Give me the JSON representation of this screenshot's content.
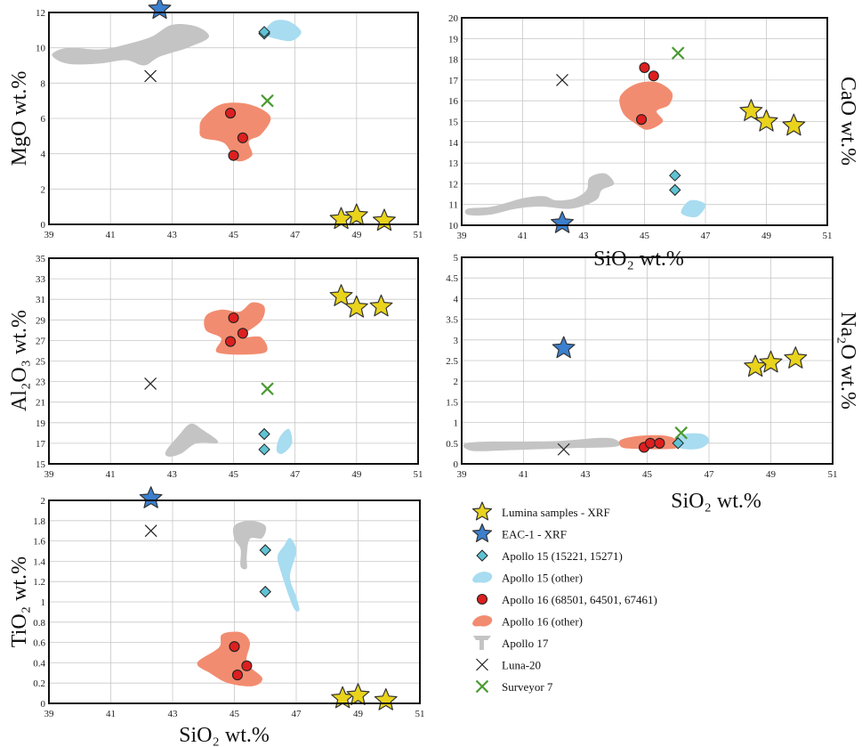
{
  "colors": {
    "lumina": "#e9d31c",
    "eac": "#3b7fce",
    "apollo15": "#5fc3d4",
    "apollo15_region": "#a8dcf0",
    "apollo16": "#dd1f1f",
    "apollo16_region": "#f28c70",
    "apollo17_region": "#c4c4c4",
    "luna20": "#222222",
    "surveyor7": "#4a9a32"
  },
  "legend": [
    {
      "key": "lumina",
      "marker": "star",
      "label": "Lumina samples - XRF"
    },
    {
      "key": "eac",
      "marker": "star",
      "label": "EAC-1 - XRF"
    },
    {
      "key": "apollo15",
      "marker": "diamond",
      "label": "Apollo 15 (15221, 15271)"
    },
    {
      "key": "apollo15_region",
      "marker": "blob",
      "label": "Apollo 15 (other)"
    },
    {
      "key": "apollo16",
      "marker": "circle",
      "label": "Apollo 16 (68501, 64501, 67461)"
    },
    {
      "key": "apollo16_region",
      "marker": "blob",
      "label": "Apollo 16 (other)"
    },
    {
      "key": "apollo17_region",
      "marker": "y",
      "label": "Apollo 17"
    },
    {
      "key": "luna20",
      "marker": "x",
      "label": "Luna-20"
    },
    {
      "key": "surveyor7",
      "marker": "x",
      "label": "Surveyor 7"
    }
  ],
  "chart_data": [
    {
      "id": "mgo",
      "type": "scatter",
      "xlabel": "",
      "ylabel": "MgO wt.%",
      "ylabel_side": "left",
      "xlim": [
        39,
        51
      ],
      "ylim": [
        0,
        12
      ],
      "xticks": [
        39,
        41,
        43,
        45,
        47,
        49,
        51
      ],
      "yticks": [
        0,
        2,
        4,
        6,
        8,
        10,
        12
      ],
      "points": {
        "lumina": [
          [
            48.5,
            0.3
          ],
          [
            49.0,
            0.5
          ],
          [
            49.9,
            0.2
          ]
        ],
        "eac": [
          [
            42.6,
            12.2
          ]
        ],
        "apollo15": [
          [
            46.0,
            10.8
          ],
          [
            46.0,
            10.9
          ]
        ],
        "apollo16": [
          [
            44.9,
            6.3
          ],
          [
            45.3,
            4.9
          ],
          [
            45.0,
            3.9
          ]
        ],
        "luna20": [
          [
            42.3,
            8.4
          ]
        ],
        "surveyor7": [
          [
            46.1,
            7.0
          ]
        ]
      },
      "regions": {
        "apollo15_region": [
          [
            46.0,
            10.8
          ],
          [
            46.3,
            11.5
          ],
          [
            46.8,
            11.5
          ],
          [
            47.2,
            10.9
          ],
          [
            46.9,
            10.4
          ],
          [
            46.4,
            10.5
          ]
        ],
        "apollo16_region": [
          [
            44.0,
            6.0
          ],
          [
            44.6,
            6.8
          ],
          [
            45.5,
            6.8
          ],
          [
            46.2,
            6.1
          ],
          [
            45.9,
            5.1
          ],
          [
            45.5,
            4.7
          ],
          [
            45.6,
            3.9
          ],
          [
            45.1,
            3.6
          ],
          [
            44.7,
            4.6
          ],
          [
            44.0,
            4.9
          ],
          [
            43.9,
            5.4
          ]
        ],
        "apollo17_region": [
          [
            39.1,
            9.6
          ],
          [
            39.6,
            10.0
          ],
          [
            40.6,
            9.9
          ],
          [
            41.3,
            10.1
          ],
          [
            42.3,
            10.6
          ],
          [
            43.0,
            11.3
          ],
          [
            43.8,
            11.2
          ],
          [
            44.2,
            10.6
          ],
          [
            43.5,
            10.0
          ],
          [
            42.6,
            9.5
          ],
          [
            42.1,
            9.0
          ],
          [
            41.5,
            9.3
          ],
          [
            40.6,
            9.1
          ],
          [
            39.6,
            9.1
          ]
        ]
      }
    },
    {
      "id": "cao",
      "type": "scatter",
      "xlabel": "SiO₂ wt.%",
      "ylabel": "CaO wt.%",
      "ylabel_side": "right",
      "xlim": [
        39,
        51
      ],
      "ylim": [
        10,
        20
      ],
      "xticks": [
        39,
        41,
        43,
        45,
        47,
        49,
        51
      ],
      "yticks": [
        10,
        11,
        12,
        13,
        14,
        15,
        16,
        17,
        18,
        19,
        20
      ],
      "points": {
        "lumina": [
          [
            48.5,
            15.5
          ],
          [
            49.0,
            15.0
          ],
          [
            49.9,
            14.8
          ]
        ],
        "eac": [
          [
            42.3,
            10.1
          ]
        ],
        "apollo15": [
          [
            46.0,
            12.4
          ],
          [
            46.0,
            11.7
          ]
        ],
        "apollo16": [
          [
            45.0,
            17.6
          ],
          [
            45.3,
            17.2
          ],
          [
            44.9,
            15.1
          ]
        ],
        "luna20": [
          [
            42.3,
            17.0
          ]
        ],
        "surveyor7": [
          [
            46.1,
            18.3
          ]
        ]
      },
      "regions": {
        "apollo15_region": [
          [
            46.5,
            11.2
          ],
          [
            47.0,
            11.0
          ],
          [
            46.7,
            10.4
          ],
          [
            46.2,
            10.6
          ]
        ],
        "apollo16_region": [
          [
            44.2,
            16.2
          ],
          [
            44.7,
            16.8
          ],
          [
            45.4,
            16.9
          ],
          [
            45.9,
            16.4
          ],
          [
            45.8,
            15.8
          ],
          [
            45.4,
            15.5
          ],
          [
            45.6,
            15.0
          ],
          [
            45.1,
            14.6
          ],
          [
            44.7,
            14.9
          ],
          [
            44.3,
            15.4
          ]
        ],
        "apollo17_region": [
          [
            39.2,
            10.8
          ],
          [
            40.0,
            10.9
          ],
          [
            41.0,
            11.3
          ],
          [
            41.7,
            11.4
          ],
          [
            42.1,
            11.2
          ],
          [
            42.7,
            11.3
          ],
          [
            43.1,
            11.7
          ],
          [
            43.2,
            12.3
          ],
          [
            43.7,
            12.5
          ],
          [
            44.0,
            12.0
          ],
          [
            43.6,
            11.7
          ],
          [
            43.4,
            11.2
          ],
          [
            42.6,
            10.8
          ],
          [
            41.6,
            10.9
          ],
          [
            40.8,
            10.8
          ],
          [
            39.9,
            10.5
          ],
          [
            39.2,
            10.5
          ]
        ]
      }
    },
    {
      "id": "al2o3",
      "type": "scatter",
      "xlabel": "",
      "ylabel": "Al₂O₃ wt.%",
      "ylabel_side": "left",
      "xlim": [
        39,
        51
      ],
      "ylim": [
        15,
        35
      ],
      "xticks": [
        39,
        41,
        43,
        45,
        47,
        49,
        51
      ],
      "yticks": [
        15,
        17,
        19,
        21,
        23,
        25,
        27,
        29,
        31,
        33,
        35
      ],
      "points": {
        "lumina": [
          [
            48.5,
            31.3
          ],
          [
            49.0,
            30.2
          ],
          [
            49.8,
            30.3
          ]
        ],
        "eac": [],
        "apollo15": [
          [
            46.0,
            17.9
          ],
          [
            46.0,
            16.4
          ]
        ],
        "apollo16": [
          [
            45.0,
            29.2
          ],
          [
            45.3,
            27.7
          ],
          [
            44.9,
            26.9
          ]
        ],
        "luna20": [
          [
            42.3,
            22.8
          ]
        ],
        "surveyor7": [
          [
            46.1,
            22.3
          ]
        ]
      },
      "regions": {
        "apollo15_region": [
          [
            46.6,
            16.0
          ],
          [
            46.9,
            17.0
          ],
          [
            46.8,
            18.4
          ],
          [
            46.5,
            17.6
          ],
          [
            46.4,
            16.3
          ]
        ],
        "apollo16_region": [
          [
            44.1,
            29.4
          ],
          [
            44.6,
            30.0
          ],
          [
            45.2,
            29.8
          ],
          [
            45.6,
            30.7
          ],
          [
            46.0,
            30.3
          ],
          [
            45.9,
            28.9
          ],
          [
            45.3,
            27.4
          ],
          [
            45.9,
            27.3
          ],
          [
            46.0,
            25.8
          ],
          [
            44.5,
            25.8
          ],
          [
            44.6,
            27.2
          ],
          [
            44.1,
            28.0
          ]
        ],
        "apollo17_region": [
          [
            42.8,
            16.2
          ],
          [
            43.2,
            17.7
          ],
          [
            43.6,
            18.9
          ],
          [
            44.0,
            18.3
          ],
          [
            44.5,
            17.1
          ],
          [
            43.8,
            17.0
          ],
          [
            43.3,
            16.0
          ],
          [
            42.9,
            15.7
          ]
        ]
      }
    },
    {
      "id": "na2o",
      "type": "scatter",
      "xlabel": "SiO₂ wt.%",
      "ylabel": "Na₂O wt.%",
      "ylabel_side": "right",
      "xlim": [
        39,
        51
      ],
      "ylim": [
        0,
        5
      ],
      "xticks": [
        39,
        41,
        43,
        45,
        47,
        49,
        51
      ],
      "yticks": [
        0,
        0.5,
        1,
        1.5,
        2,
        2.5,
        3,
        3.5,
        4,
        4.5,
        5
      ],
      "points": {
        "lumina": [
          [
            48.5,
            2.35
          ],
          [
            49.0,
            2.45
          ],
          [
            49.8,
            2.55
          ]
        ],
        "eac": [
          [
            42.3,
            2.8
          ]
        ],
        "apollo15": [
          [
            46.0,
            0.5
          ]
        ],
        "apollo16": [
          [
            44.9,
            0.4
          ],
          [
            45.1,
            0.5
          ],
          [
            45.4,
            0.5
          ]
        ],
        "luna20": [
          [
            42.3,
            0.35
          ]
        ],
        "surveyor7": [
          [
            46.1,
            0.75
          ]
        ]
      },
      "regions": {
        "apollo15_region": [
          [
            45.9,
            0.55
          ],
          [
            46.2,
            0.72
          ],
          [
            46.8,
            0.72
          ],
          [
            47.0,
            0.55
          ],
          [
            46.7,
            0.37
          ],
          [
            46.1,
            0.37
          ]
        ],
        "apollo16_region": [
          [
            44.2,
            0.6
          ],
          [
            44.8,
            0.68
          ],
          [
            45.6,
            0.68
          ],
          [
            46.0,
            0.55
          ],
          [
            45.9,
            0.37
          ],
          [
            44.4,
            0.37
          ],
          [
            44.1,
            0.48
          ]
        ],
        "apollo17_region": [
          [
            39.3,
            0.32
          ],
          [
            39.3,
            0.52
          ],
          [
            42.0,
            0.55
          ],
          [
            43.5,
            0.63
          ],
          [
            44.0,
            0.58
          ],
          [
            44.0,
            0.42
          ],
          [
            42.5,
            0.38
          ],
          [
            40.5,
            0.33
          ]
        ]
      }
    },
    {
      "id": "tio2",
      "type": "scatter",
      "xlabel": "SiO₂ wt.%",
      "ylabel": "TiO₂ wt.%",
      "ylabel_side": "left",
      "xlim": [
        39,
        51
      ],
      "ylim": [
        0,
        2
      ],
      "xticks": [
        39,
        41,
        43,
        45,
        47,
        49,
        51
      ],
      "yticks": [
        0,
        0.2,
        0.4,
        0.6,
        0.8,
        1,
        1.2,
        1.4,
        1.6,
        1.8,
        2
      ],
      "points": {
        "lumina": [
          [
            48.5,
            0.05
          ],
          [
            49.0,
            0.08
          ],
          [
            49.9,
            0.03
          ]
        ],
        "eac": [
          [
            42.3,
            2.02
          ]
        ],
        "apollo15": [
          [
            46.0,
            1.51
          ],
          [
            46.0,
            1.1
          ]
        ],
        "apollo16": [
          [
            45.0,
            0.56
          ],
          [
            45.4,
            0.37
          ],
          [
            45.1,
            0.28
          ]
        ],
        "luna20": [
          [
            42.3,
            1.7
          ]
        ],
        "surveyor7": []
      },
      "regions": {
        "apollo15_region": [
          [
            46.6,
            1.55
          ],
          [
            46.8,
            1.63
          ],
          [
            47.0,
            1.5
          ],
          [
            46.8,
            1.25
          ],
          [
            47.0,
            1.05
          ],
          [
            47.1,
            0.92
          ],
          [
            46.9,
            0.95
          ],
          [
            46.5,
            1.3
          ],
          [
            46.4,
            1.45
          ]
        ],
        "apollo16_region": [
          [
            43.8,
            0.4
          ],
          [
            44.5,
            0.55
          ],
          [
            44.6,
            0.68
          ],
          [
            45.2,
            0.7
          ],
          [
            45.5,
            0.6
          ],
          [
            45.4,
            0.4
          ],
          [
            45.9,
            0.25
          ],
          [
            45.6,
            0.17
          ],
          [
            44.8,
            0.2
          ],
          [
            44.2,
            0.3
          ]
        ],
        "apollo17_region": [
          [
            45.0,
            1.75
          ],
          [
            45.5,
            1.8
          ],
          [
            46.0,
            1.75
          ],
          [
            45.9,
            1.63
          ],
          [
            45.5,
            1.62
          ],
          [
            45.4,
            1.45
          ],
          [
            45.4,
            1.33
          ],
          [
            45.2,
            1.35
          ],
          [
            45.2,
            1.52
          ],
          [
            45.0,
            1.62
          ]
        ]
      }
    }
  ]
}
